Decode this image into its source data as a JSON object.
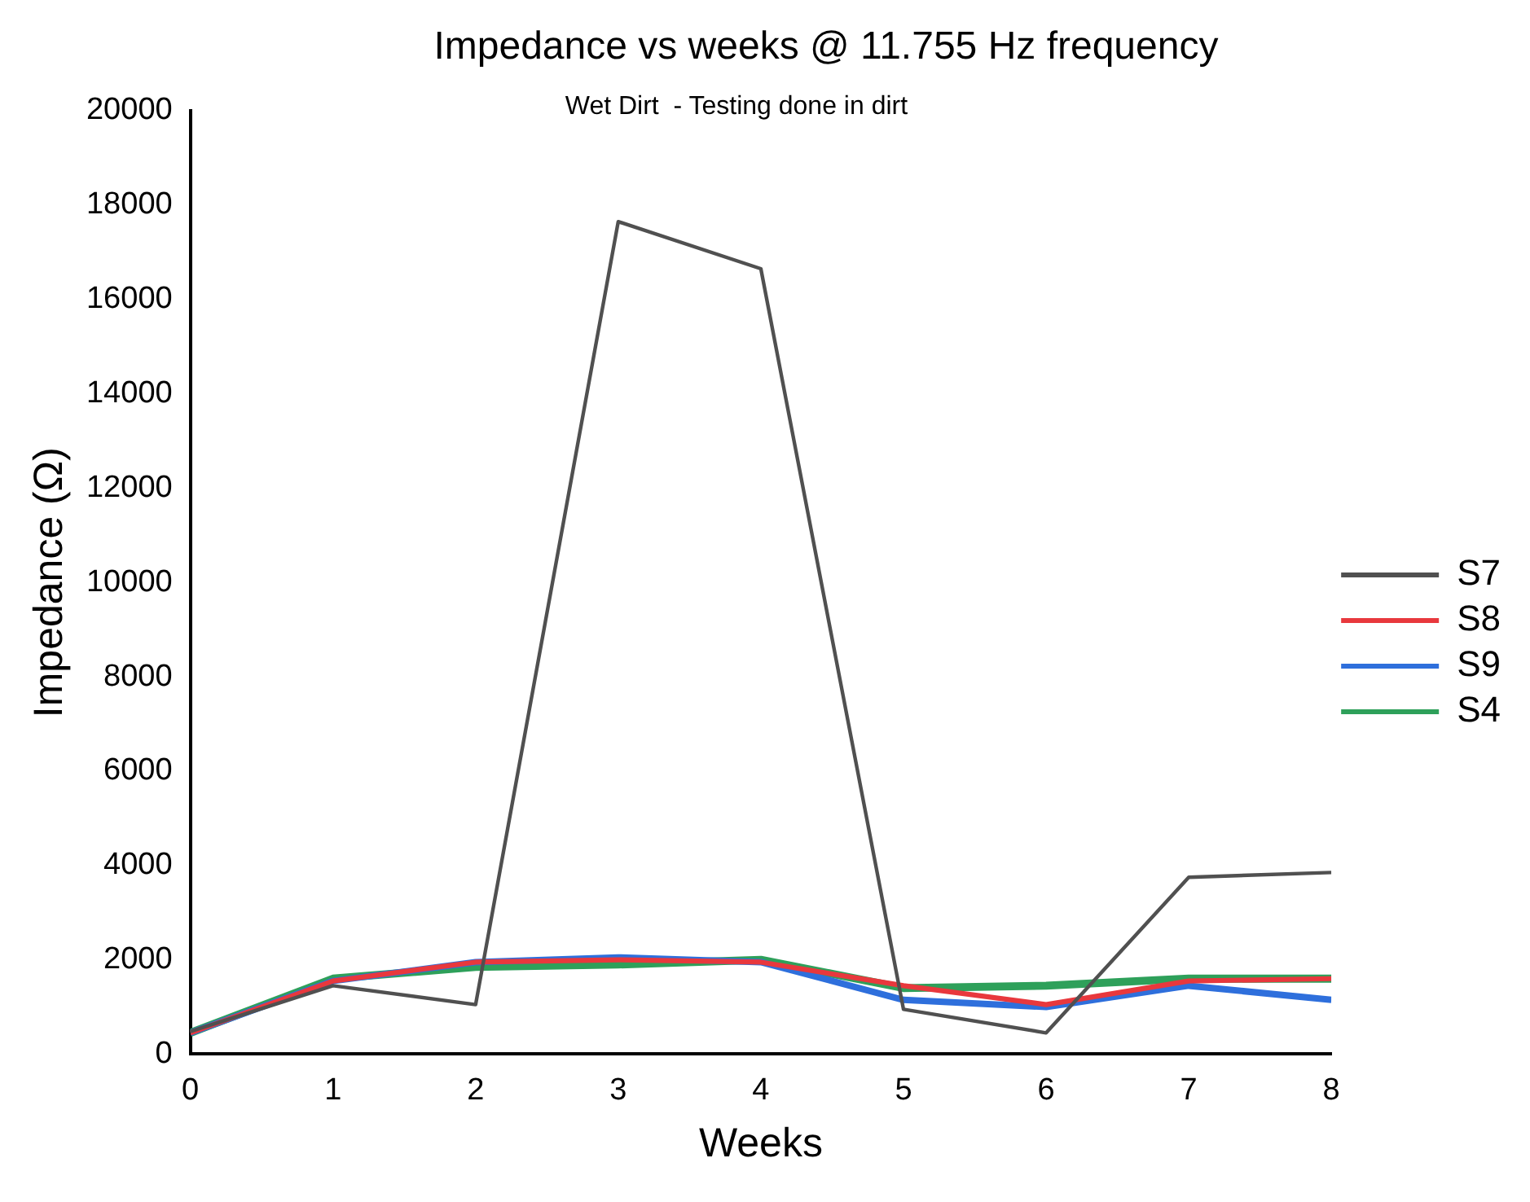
{
  "chart_data": {
    "type": "line",
    "title": "Impedance vs weeks @ 11.755 Hz frequency",
    "subtitle": "Wet Dirt  - Testing done in dirt",
    "xlabel": "Weeks",
    "ylabel": "Impedance (Ω)",
    "x": [
      0,
      1,
      2,
      3,
      4,
      5,
      6,
      7,
      8
    ],
    "xlim": [
      0,
      8
    ],
    "xticks": [
      0,
      1,
      2,
      3,
      4,
      5,
      6,
      7,
      8
    ],
    "ylim": [
      0,
      20000
    ],
    "yticks": [
      0,
      2000,
      4000,
      6000,
      8000,
      10000,
      12000,
      14000,
      16000,
      18000,
      20000
    ],
    "grid": false,
    "legend": "right",
    "marker": "none",
    "line_style": "solid",
    "series": [
      {
        "name": "S7",
        "color": "#505050",
        "values": [
          480,
          1450,
          1050,
          17650,
          16650,
          950,
          450,
          3750,
          3850
        ]
      },
      {
        "name": "S8",
        "color": "#e8383d",
        "values": [
          450,
          1550,
          1950,
          2000,
          1950,
          1450,
          1050,
          1550,
          1600
        ]
      },
      {
        "name": "S9",
        "color": "#2e6fdc",
        "values": [
          450,
          1550,
          1950,
          2050,
          1950,
          1150,
          1000,
          1450,
          1150
        ]
      },
      {
        "name": "S4",
        "color": "#2ea05a",
        "values": [
          450,
          1600,
          1850,
          1900,
          2000,
          1400,
          1450,
          1600,
          1600
        ]
      }
    ]
  }
}
